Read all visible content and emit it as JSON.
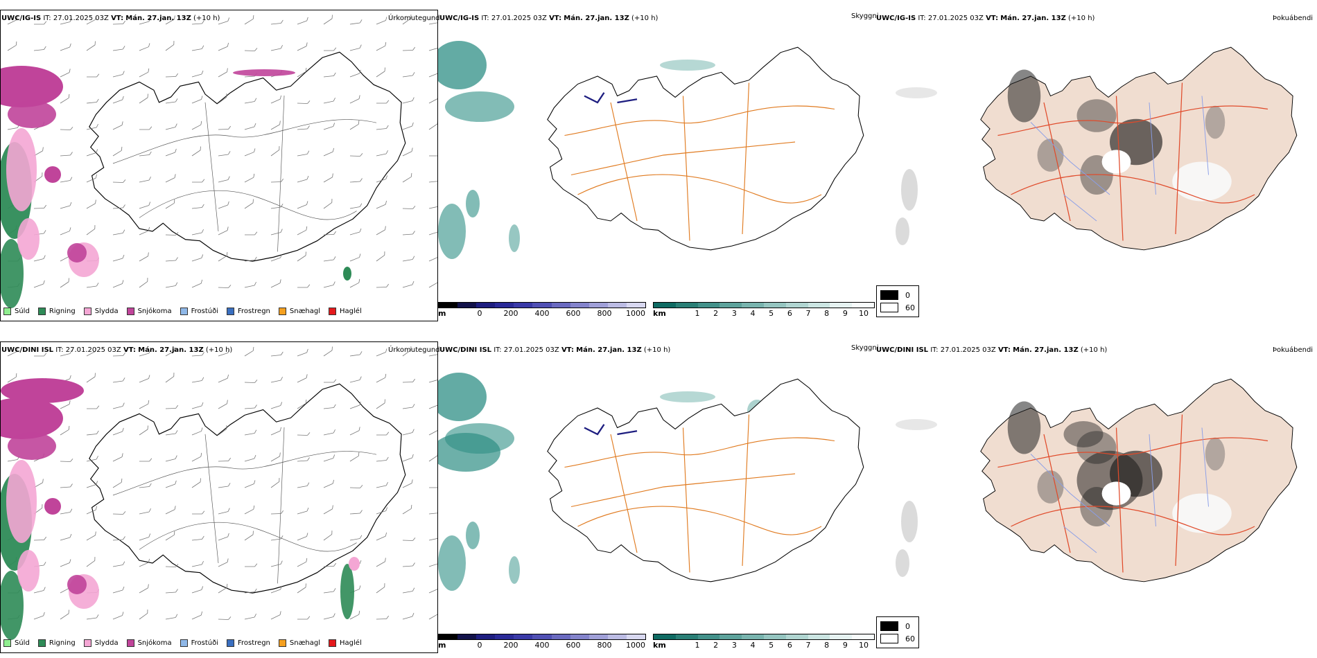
{
  "rows": [
    {
      "model": "UWC/IG-IS",
      "it_label": "IT:",
      "it": "27.01.2025 03Z",
      "vt_label": "VT:",
      "vt": "Mán. 27.jan. 13Z",
      "lead": "(+10 h)"
    },
    {
      "model": "UWC/DINI ISL",
      "it_label": "IT:",
      "it": "27.01.2025 03Z",
      "vt_label": "VT:",
      "vt": "Mán. 27.jan. 13Z",
      "lead": "(+10 h)"
    }
  ],
  "titles": {
    "precip_type": "Úrkomutegund",
    "visibility": "Skyggni",
    "fog": "Þokuábendi"
  },
  "precip_legend": [
    {
      "label": "Súld",
      "color": "#90ee90"
    },
    {
      "label": "Rigning",
      "color": "#2e8b57"
    },
    {
      "label": "Slydda",
      "color": "#f4a6d4"
    },
    {
      "label": "Snjókoma",
      "color": "#c0449a"
    },
    {
      "label": "Frostúði",
      "color": "#8fb8e8"
    },
    {
      "label": "Frostregn",
      "color": "#3a6fc0"
    },
    {
      "label": "Snæhagl",
      "color": "#f5a020"
    },
    {
      "label": "Haglél",
      "color": "#e41a1c"
    }
  ],
  "cloud_base_bar": {
    "unit": "m",
    "ticks": [
      "0",
      "200",
      "400",
      "600",
      "800",
      "1000"
    ],
    "colors": [
      "#000000",
      "#12124a",
      "#1e1e80",
      "#2a2a98",
      "#3a3aa8",
      "#5050b4",
      "#6a6ac0",
      "#8484cc",
      "#a0a0d8",
      "#bcbce4",
      "#d8d8f0"
    ]
  },
  "visibility_bar": {
    "unit": "km",
    "ticks": [
      "1",
      "2",
      "3",
      "4",
      "5",
      "6",
      "7",
      "8",
      "9",
      "10"
    ],
    "colors": [
      "#0f6b63",
      "#2a7f76",
      "#43918a",
      "#5ea39c",
      "#79b4ae",
      "#95c5c0",
      "#b0d5d1",
      "#cbe5e2",
      "#e6f2f1",
      "#f7fbfb"
    ]
  },
  "fog_legend": [
    {
      "label": "0",
      "color": "#000000"
    },
    {
      "label": "60",
      "color": "#ffffff"
    }
  ],
  "map_colors": {
    "coast": "#000000",
    "land_fog": "#f0ddd0",
    "roads_orange": "#e07a1f",
    "roads_red": "#e04a2a",
    "rivers": "#8a9ee8",
    "snow": "#c0449a",
    "rain": "#2e8b57",
    "sleet": "#f4a6d4",
    "teal": "#2f8f85"
  }
}
